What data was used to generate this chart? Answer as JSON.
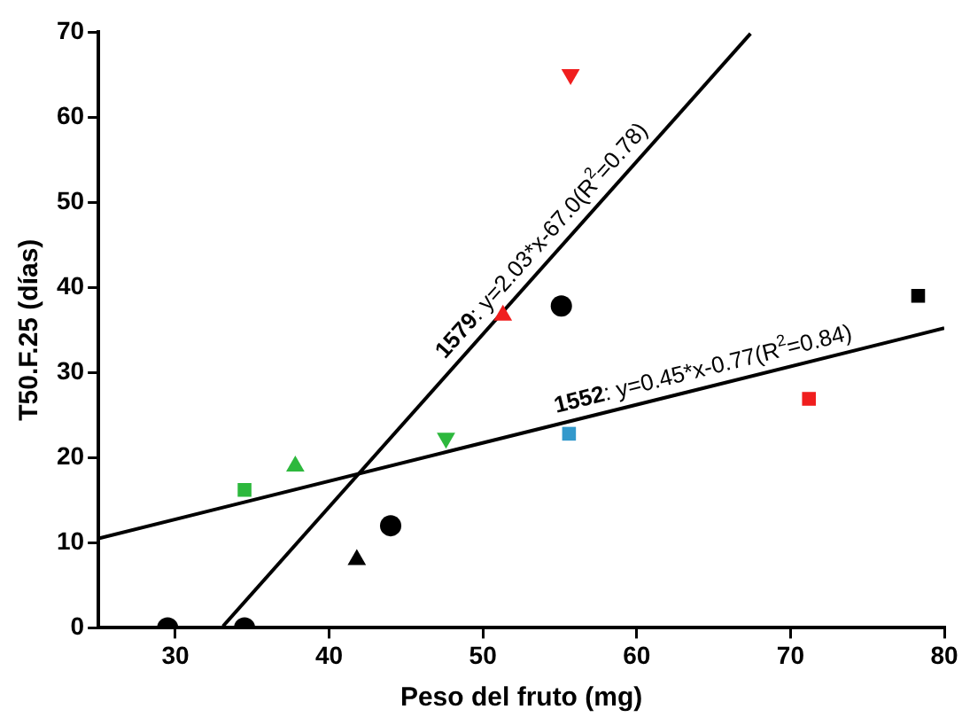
{
  "chart_data": {
    "type": "scatter",
    "xlabel": "Peso del fruto (mg)",
    "ylabel": "T50.F.25 (días)",
    "xlim": [
      25,
      80
    ],
    "xticks": [
      30,
      40,
      50,
      60,
      70,
      80
    ],
    "ylim": [
      0,
      70
    ],
    "yticks": [
      0,
      10,
      20,
      30,
      40,
      50,
      60,
      70
    ],
    "grid": false,
    "legend": false,
    "series": [
      {
        "marker": "circle",
        "color": "#000000",
        "x": [
          29.5,
          34.5,
          44,
          55.1
        ],
        "values": [
          0,
          0,
          12,
          37.8
        ]
      },
      {
        "marker": "triangle",
        "colors": [
          "#000000",
          "#2db83d",
          "#f01e1e"
        ],
        "x": [
          41.8,
          37.8,
          51.3
        ],
        "values": [
          8,
          19,
          36.7
        ]
      },
      {
        "marker": "square",
        "colors": [
          "#000000",
          "#2db83d",
          "#3399cc",
          "#f01e1e"
        ],
        "x": [
          78.3,
          34.5,
          55.6,
          71.2
        ],
        "values": [
          39,
          16.2,
          22.8,
          26.9
        ]
      },
      {
        "marker": "triangle_down",
        "colors": [
          "#2db83d",
          "#f01e1e"
        ],
        "x": [
          47.6,
          55.7
        ],
        "values": [
          22.3,
          65
        ]
      },
      {
        "type": "line",
        "marker": "none",
        "color": "#000000",
        "x": [
          33.1,
          67.4
        ],
        "values": [
          0.2,
          69.8
        ]
      },
      {
        "type": "line",
        "marker": "none",
        "color": "#000000",
        "x": [
          25,
          80
        ],
        "values": [
          10.5,
          35.2
        ]
      }
    ],
    "annotations": [
      "1579: y=2.03*x-67.0(R$^{2}$=0.78)",
      "1552: y=0.45*x-0.77(R$^{2}$=0.84)"
    ]
  }
}
